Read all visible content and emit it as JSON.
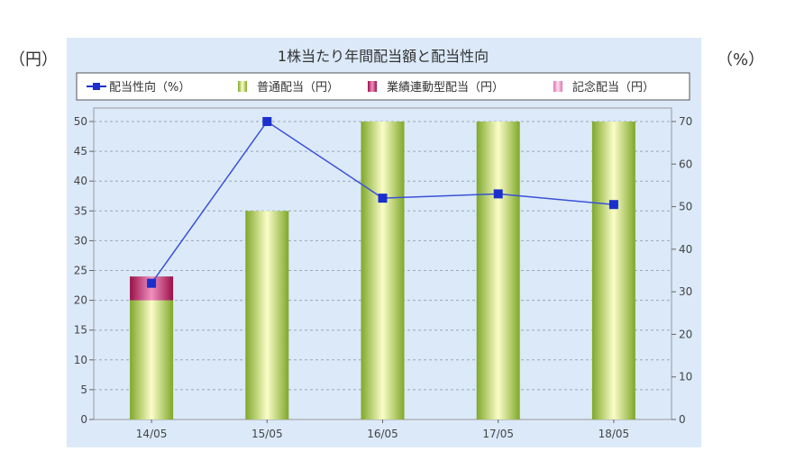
{
  "units": {
    "left": "（円）",
    "right": "（%）"
  },
  "chart_data": {
    "type": "bar",
    "title": "1株当たり年間配当額と配当性向",
    "categories": [
      "14/05",
      "15/05",
      "16/05",
      "17/05",
      "18/05"
    ],
    "series": [
      {
        "name": "配当性向（%）",
        "kind": "line",
        "axis": "right",
        "color": "#1a2fcc",
        "values": [
          32,
          70,
          52,
          53,
          50.5
        ]
      },
      {
        "name": "普通配当（円）",
        "kind": "bar",
        "axis": "left",
        "color": "#9cc43a",
        "values": [
          20,
          35,
          50,
          50,
          50
        ]
      },
      {
        "name": "業績連動型配当（円）",
        "kind": "bar",
        "axis": "left",
        "color": "#b0185a",
        "values": [
          4,
          0,
          0,
          0,
          0
        ]
      },
      {
        "name": "記念配当（円）",
        "kind": "bar",
        "axis": "left",
        "color": "#f080c0",
        "values": [
          0,
          0,
          0,
          0,
          0
        ]
      }
    ],
    "y_left": {
      "range": [
        0,
        50
      ],
      "ticks": [
        "0",
        "5",
        "10",
        "15",
        "20",
        "25",
        "30",
        "35",
        "40",
        "45",
        "50"
      ]
    },
    "y_right": {
      "range": [
        0,
        70
      ],
      "ticks": [
        "0",
        "10",
        "20",
        "30",
        "40",
        "50",
        "60",
        "70"
      ]
    },
    "grid": true,
    "legend_position": "top"
  }
}
